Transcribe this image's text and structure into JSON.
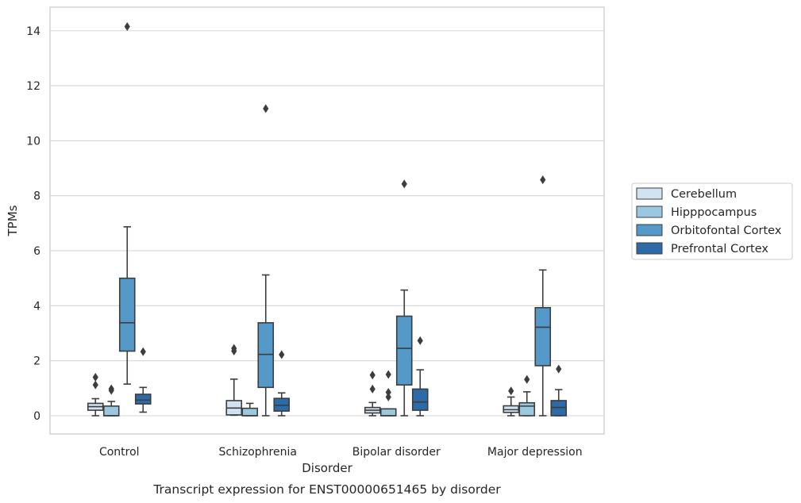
{
  "chart_data": {
    "type": "box",
    "xlabel": "Disorder",
    "ylabel": "TPMs",
    "caption": "Transcript expression for ENST00000651465 by disorder",
    "ylim": [
      -0.7,
      14.85
    ],
    "yticks": [
      0,
      2,
      4,
      6,
      8,
      10,
      12,
      14
    ],
    "grid": "horizontal",
    "legend_position": "right",
    "categories": [
      "Control",
      "Schizophrenia",
      "Bipolar disorder",
      "Major depression"
    ],
    "series": [
      {
        "name": "Cerebellum",
        "color": "#d1e2f2",
        "boxes": [
          {
            "min": 0.0,
            "q1": 0.2,
            "median": 0.33,
            "q3": 0.45,
            "max": 0.62,
            "outliers": [
              1.12,
              1.4
            ]
          },
          {
            "min": 0.02,
            "q1": 0.03,
            "median": 0.28,
            "q3": 0.55,
            "max": 1.33,
            "outliers": [
              2.35,
              2.45
            ]
          },
          {
            "min": 0.0,
            "q1": 0.1,
            "median": 0.2,
            "q3": 0.3,
            "max": 0.48,
            "outliers": [
              0.97,
              1.48
            ]
          },
          {
            "min": 0.0,
            "q1": 0.12,
            "median": 0.22,
            "q3": 0.36,
            "max": 0.68,
            "outliers": [
              0.9
            ]
          }
        ]
      },
      {
        "name": "Hipppocampus",
        "color": "#9ac8e0",
        "boxes": [
          {
            "min": 0.0,
            "q1": 0.0,
            "median": 0.0,
            "q3": 0.35,
            "max": 0.52,
            "outliers": [
              0.92,
              0.98
            ]
          },
          {
            "min": 0.0,
            "q1": 0.0,
            "median": 0.0,
            "q3": 0.27,
            "max": 0.45,
            "outliers": []
          },
          {
            "min": 0.0,
            "q1": 0.0,
            "median": 0.0,
            "q3": 0.25,
            "max": 0.25,
            "outliers": [
              0.68,
              0.85,
              1.5
            ]
          },
          {
            "min": 0.0,
            "q1": 0.0,
            "median": 0.35,
            "q3": 0.47,
            "max": 0.87,
            "outliers": [
              1.32
            ]
          }
        ]
      },
      {
        "name": "Orbitofontal Cortex",
        "color": "#5599c8",
        "boxes": [
          {
            "min": 1.15,
            "q1": 2.35,
            "median": 3.38,
            "q3": 5.0,
            "max": 6.87,
            "outliers": [
              14.15
            ]
          },
          {
            "min": 0.0,
            "q1": 1.03,
            "median": 2.23,
            "q3": 3.38,
            "max": 5.12,
            "outliers": [
              11.17
            ]
          },
          {
            "min": 0.0,
            "q1": 1.12,
            "median": 2.45,
            "q3": 3.62,
            "max": 4.57,
            "outliers": [
              8.43
            ]
          },
          {
            "min": 0.0,
            "q1": 1.82,
            "median": 3.22,
            "q3": 3.93,
            "max": 5.3,
            "outliers": [
              8.58
            ]
          }
        ]
      },
      {
        "name": "Prefrontal Cortex",
        "color": "#2c6aa8",
        "boxes": [
          {
            "min": 0.13,
            "q1": 0.43,
            "median": 0.57,
            "q3": 0.78,
            "max": 1.03,
            "outliers": [
              2.33
            ]
          },
          {
            "min": 0.0,
            "q1": 0.17,
            "median": 0.38,
            "q3": 0.63,
            "max": 0.83,
            "outliers": [
              2.22
            ]
          },
          {
            "min": 0.0,
            "q1": 0.2,
            "median": 0.5,
            "q3": 0.97,
            "max": 1.67,
            "outliers": [
              2.73
            ]
          },
          {
            "min": 0.0,
            "q1": 0.0,
            "median": 0.3,
            "q3": 0.55,
            "max": 0.95,
            "outliers": [
              1.7
            ]
          }
        ]
      }
    ]
  }
}
